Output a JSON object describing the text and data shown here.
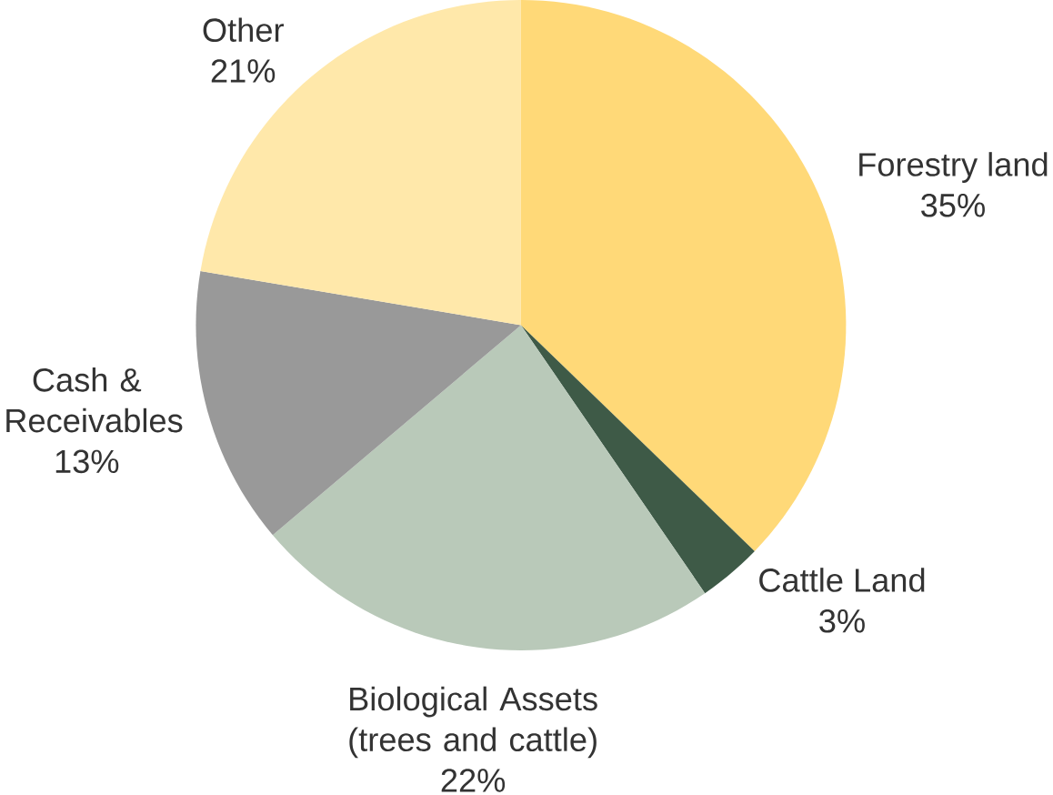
{
  "chart_data": {
    "type": "pie",
    "categories": [
      "Forestry land",
      "Cattle Land",
      "Biological Assets (trees and cattle)",
      "Cash & Receivables",
      "Other"
    ],
    "values": [
      35,
      3,
      22,
      13,
      21
    ],
    "value_labels": [
      "35%",
      "3%",
      "22%",
      "13%",
      "21%"
    ],
    "colors": [
      "#ffd978",
      "#3e5a47",
      "#b9c9b9",
      "#999999",
      "#ffe8aa"
    ]
  }
}
